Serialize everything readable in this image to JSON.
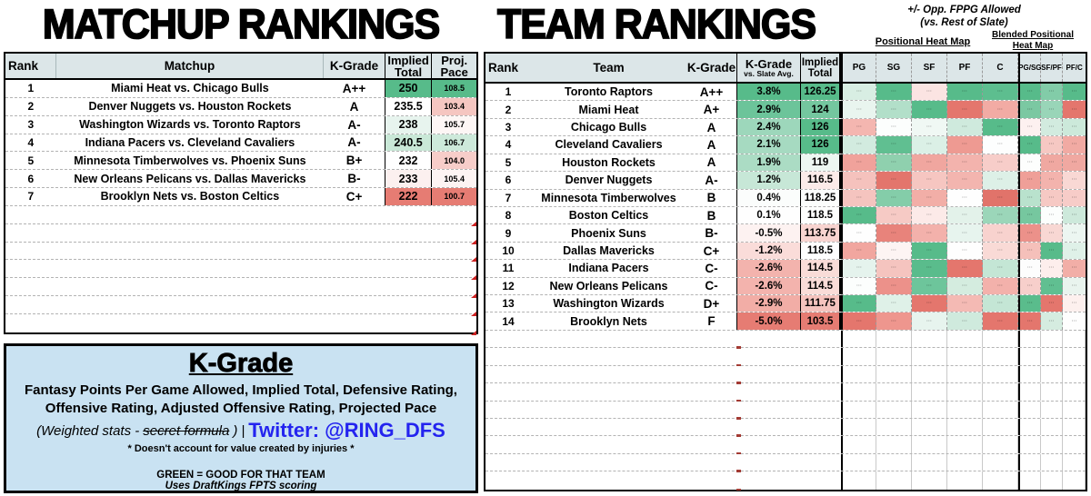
{
  "matchup_rankings": {
    "title": "MATCHUP RANKINGS",
    "headers": {
      "rank": "Rank",
      "matchup": "Matchup",
      "kgrade": "K-Grade",
      "implied_l1": "Implied",
      "implied_l2": "Total",
      "pace_l1": "Proj.",
      "pace_l2": "Pace"
    },
    "rows": [
      {
        "rank": "1",
        "matchup": "Miami Heat vs. Chicago Bulls",
        "kgrade": "A++",
        "implied": "250",
        "implied_bg": "#57bb8a",
        "pace": "108.5",
        "pace_bg": "#57bb8a"
      },
      {
        "rank": "2",
        "matchup": "Denver Nuggets vs. Houston Rockets",
        "kgrade": "A",
        "implied": "235.5",
        "implied_bg": "#ffffff",
        "pace": "103.4",
        "pace_bg": "#f5c6c1"
      },
      {
        "rank": "3",
        "matchup": "Washington Wizards vs. Toronto Raptors",
        "kgrade": "A-",
        "implied": "238",
        "implied_bg": "#e7f4ee",
        "pace": "105.7",
        "pace_bg": "#fdf6f5"
      },
      {
        "rank": "4",
        "matchup": "Indiana Pacers vs. Cleveland Cavaliers",
        "kgrade": "A-",
        "implied": "240.5",
        "implied_bg": "#c9e8d7",
        "pace": "106.7",
        "pace_bg": "#cde9da"
      },
      {
        "rank": "5",
        "matchup": "Minnesota Timberwolves vs. Phoenix Suns",
        "kgrade": "B+",
        "implied": "232",
        "implied_bg": "#ffffff",
        "pace": "104.0",
        "pace_bg": "#f7cdc9"
      },
      {
        "rank": "6",
        "matchup": "New Orleans Pelicans vs. Dallas Mavericks",
        "kgrade": "B-",
        "implied": "233",
        "implied_bg": "#fcf0ef",
        "pace": "105.4",
        "pace_bg": "#fdf4f3"
      },
      {
        "rank": "7",
        "matchup": "Brooklyn Nets vs. Boston Celtics",
        "kgrade": "C+",
        "implied": "222",
        "implied_bg": "#e67c73",
        "pace": "100.7",
        "pace_bg": "#e67c73"
      }
    ],
    "empty_row_count": 7
  },
  "kgrade_box": {
    "title": "K-Grade",
    "main_line1": "Fantasy Points Per Game Allowed, Implied Total, Defensive Rating,",
    "main_line2": "Offensive Rating, Adjusted Offensive Rating, Projected Pace",
    "weighted_prefix": "(Weighted stats -",
    "weighted_strike": "secret formula",
    "weighted_suffix": ")",
    "separator": "|",
    "twitter": "Twitter: @RING_DFS",
    "disclaimer": "* Doesn't account for value created by injuries *",
    "green_note": "GREEN = GOOD FOR THAT TEAM",
    "scoring_note": "Uses DraftKings FPTS scoring"
  },
  "team_rankings": {
    "title": "TEAM RANKINGS",
    "fppg_note": [
      "+/- Opp. FPPG Allowed",
      "(vs. Rest of Slate)"
    ],
    "positional_heatmap_label": "Positional Heat Map",
    "blended_heatmap_label": [
      "Blended Positional",
      "Heat Map"
    ],
    "headers": {
      "rank": "Rank",
      "team": "Team",
      "kgrade": "K-Grade",
      "vs_l1": "K-Grade",
      "vs_l2": "vs. Slate Avg.",
      "implied_l1": "Implied",
      "implied_l2": "Total",
      "heat": [
        "PG",
        "SG",
        "SF",
        "PF",
        "C",
        "PG/SG",
        "SF/PF",
        "PF/C"
      ]
    },
    "heat_cell_texture": "···",
    "rows": [
      {
        "rank": "1",
        "team": "Toronto Raptors",
        "kgrade": "A++",
        "vs": "3.8%",
        "vs_bg": "#57bb8a",
        "implied": "126.25",
        "implied_bg": "#57bb8a",
        "heat_bg": [
          "#d8eee3",
          "#57bb8a",
          "#fbe4e2",
          "#57bb8a",
          "#5dbe8f",
          "#57bb8a",
          "#82cca8",
          "#57bb8a"
        ]
      },
      {
        "rank": "2",
        "team": "Miami Heat",
        "kgrade": "A+",
        "vs": "2.9%",
        "vs_bg": "#6cc49a",
        "implied": "124",
        "implied_bg": "#74c79f",
        "heat_bg": [
          "#e9f5ef",
          "#b2dfc9",
          "#57bb8a",
          "#e4766d",
          "#f2aba4",
          "#7bc8a2",
          "#99d5b8",
          "#e4766d"
        ]
      },
      {
        "rank": "3",
        "team": "Chicago Bulls",
        "kgrade": "A",
        "vs": "2.4%",
        "vs_bg": "#9dd7bb",
        "implied": "126",
        "implied_bg": "#57bb8a",
        "heat_bg": [
          "#f4b6b0",
          "#fcfefd",
          "#f0f8f4",
          "#cfeadd",
          "#57bb8a",
          "#fdf1f0",
          "#d2ebdf",
          "#cce9da"
        ]
      },
      {
        "rank": "4",
        "team": "Cleveland Cavaliers",
        "kgrade": "A",
        "vs": "2.1%",
        "vs_bg": "#a6dac1",
        "implied": "126",
        "implied_bg": "#57bb8a",
        "heat_bg": [
          "#d2ebdf",
          "#60bf91",
          "#dbf0e6",
          "#ee9a92",
          "#fdfefe",
          "#57bb8a",
          "#f6c8c3",
          "#f1aaa3"
        ]
      },
      {
        "rank": "5",
        "team": "Houston Rockets",
        "kgrade": "A",
        "vs": "1.9%",
        "vs_bg": "#abdcc4",
        "implied": "119",
        "implied_bg": "#edf7f2",
        "heat_bg": [
          "#f0a29b",
          "#8fd0ae",
          "#f0a69f",
          "#f3b3ad",
          "#f7cdc9",
          "#fdfefd",
          "#f0a8a1",
          "#f0a8a1"
        ]
      },
      {
        "rank": "6",
        "team": "Denver Nuggets",
        "kgrade": "A-",
        "vs": "1.2%",
        "vs_bg": "#c7e7d7",
        "implied": "116.5",
        "implied_bg": "#fcebe9",
        "heat_bg": [
          "#f5c2bd",
          "#e3756c",
          "#f6c6c1",
          "#f3b5af",
          "#ddf0e7",
          "#ef9f98",
          "#f3b3ad",
          "#f9d8d4"
        ]
      },
      {
        "rank": "7",
        "team": "Minnesota Timberwolves",
        "kgrade": "B",
        "vs": "0.4%",
        "vs_bg": "#fbfdfc",
        "implied": "118.25",
        "implied_bg": "#fbfdfc",
        "heat_bg": [
          "#f5c4bf",
          "#84cda9",
          "#f2aea7",
          "#fefefe",
          "#e1736a",
          "#b9e2cd",
          "#f6c9c4",
          "#f7ccc8"
        ]
      },
      {
        "rank": "8",
        "team": "Boston Celtics",
        "kgrade": "B",
        "vs": "0.1%",
        "vs_bg": "#fefefe",
        "implied": "118.5",
        "implied_bg": "#fdfefd",
        "heat_bg": [
          "#57bb8a",
          "#f6cac5",
          "#fceae8",
          "#e3f2ea",
          "#9bd6b9",
          "#76c79f",
          "#fcfefd",
          "#cde9db"
        ]
      },
      {
        "rank": "9",
        "team": "Phoenix Suns",
        "kgrade": "B-",
        "vs": "-0.5%",
        "vs_bg": "#fdf2f1",
        "implied": "113.75",
        "implied_bg": "#f8d4d0",
        "heat_bg": [
          "#fefefe",
          "#e8837b",
          "#f3b1ab",
          "#e7f4ee",
          "#f8d2ce",
          "#ec918a",
          "#f8d7d3",
          "#ecf6f1"
        ]
      },
      {
        "rank": "10",
        "team": "Dallas Mavericks",
        "kgrade": "C+",
        "vs": "-1.2%",
        "vs_bg": "#fadcd9",
        "implied": "118.5",
        "implied_bg": "#fefefe",
        "heat_bg": [
          "#f1a69f",
          "#fdf4f3",
          "#57bb8a",
          "#fefefe",
          "#f9dad6",
          "#f5c0ba",
          "#57bb8a",
          "#dff1e8"
        ]
      },
      {
        "rank": "11",
        "team": "Indiana Pacers",
        "kgrade": "C-",
        "vs": "-2.6%",
        "vs_bg": "#f3b3ad",
        "implied": "114.5",
        "implied_bg": "#f9dcd8",
        "heat_bg": [
          "#e5f3ed",
          "#f5c4bf",
          "#5abc8c",
          "#e4766d",
          "#c4e6d5",
          "#fdfdfd",
          "#fdeeec",
          "#f2aea7"
        ]
      },
      {
        "rank": "12",
        "team": "New Orleans Pelicans",
        "kgrade": "C-",
        "vs": "-2.6%",
        "vs_bg": "#f3b3ad",
        "implied": "114.5",
        "implied_bg": "#f9dcd8",
        "heat_bg": [
          "#fcfefd",
          "#ec918a",
          "#6dc59b",
          "#d4ecdf",
          "#f3b1ab",
          "#f7cfcb",
          "#60bf91",
          "#e9f4ee"
        ]
      },
      {
        "rank": "13",
        "team": "Washington Wizards",
        "kgrade": "D+",
        "vs": "-2.9%",
        "vs_bg": "#f2ada6",
        "implied": "111.75",
        "implied_bg": "#f5c3be",
        "heat_bg": [
          "#57bb8a",
          "#dff1e8",
          "#e4766d",
          "#f4bab4",
          "#c4e6d5",
          "#5abc8c",
          "#e4766d",
          "#fdf0ee"
        ]
      },
      {
        "rank": "14",
        "team": "Brooklyn Nets",
        "kgrade": "F",
        "vs": "-5.0%",
        "vs_bg": "#e67c73",
        "implied": "103.5",
        "implied_bg": "#e67c73",
        "heat_bg": [
          "#e4766d",
          "#ee968e",
          "#e7f4ee",
          "#cfeadd",
          "#e4766d",
          "#e4766d",
          "#d5ece0",
          "#fefefe"
        ]
      }
    ],
    "empty_row_count": 9
  },
  "colors": {
    "header_bg": "#dce6e8",
    "strong_green": "#57bb8a",
    "strong_red": "#e67c73",
    "info_box_bg": "#c9e2f2",
    "twitter_blue": "#2424ef"
  }
}
